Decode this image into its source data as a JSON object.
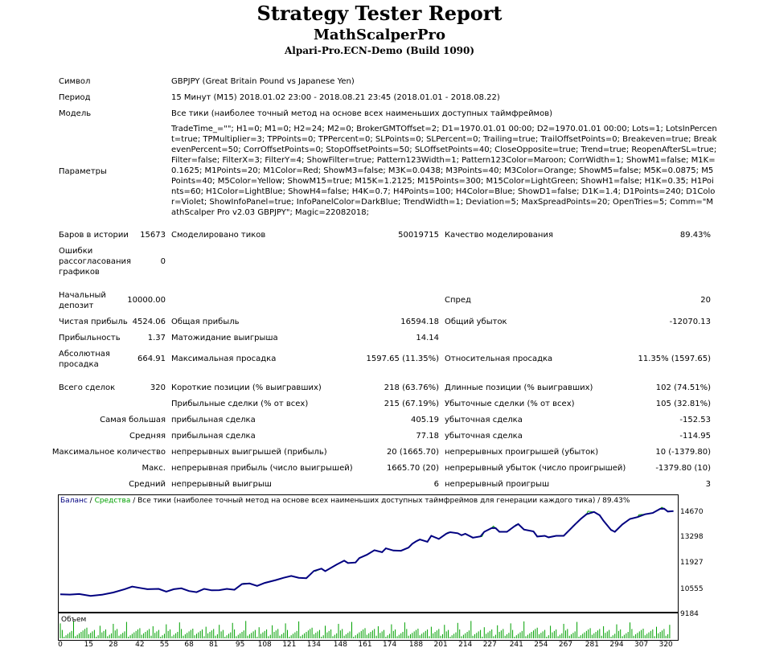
{
  "report": {
    "title": "Strategy Tester Report",
    "expert": "MathScalperPro",
    "server": "Alpari-Pro.ECN-Demo (Build 1090)"
  },
  "info": {
    "symbol_label": "Символ",
    "symbol_value": "GBPJPY (Great Britain Pound vs Japanese Yen)",
    "period_label": "Период",
    "period_value": "15 Минут (M15) 2018.01.02 23:00 - 2018.08.21 23:45 (2018.01.01 - 2018.08.22)",
    "model_label": "Модель",
    "model_value": "Все тики (наиболее точный метод на основе всех наименьших доступных таймфреймов)",
    "params_label": "Параметры",
    "params_value": "TradeTime_=\"\"; H1=0; M1=0; H2=24; M2=0; BrokerGMTOffset=2; D1=1970.01.01 00:00; D2=1970.01.01 00:00; Lots=1; LotsInPercent=true; TPMultiplier=3; TPPoints=0; TPPercent=0; SLPoints=0; SLPercent=0; Trailing=true; TrailOffsetPoints=0; Breakeven=true; BreakevenPercent=50; CorrOffsetPoints=0; StopOffsetPoints=50; SLOffsetPoints=40; CloseOpposite=true; Trend=true; ReopenAfterSL=true; Filter=false; FilterX=3; FilterY=4; ShowFilter=true; Pattern123Width=1; Pattern123Color=Maroon; CorrWidth=1; ShowM1=false; M1K=0.1625; M1Points=20; M1Color=Red; ShowM3=false; M3K=0.0438; M3Points=40; M3Color=Orange; ShowM5=false; M5K=0.0875; M5Points=40; M5Color=Yellow; ShowM15=true; M15K=1.2125; M15Points=300; M15Color=LightGreen; ShowH1=false; H1K=0.35; H1Points=60; H1Color=LightBlue; ShowH4=false; H4K=0.7; H4Points=100; H4Color=Blue; ShowD1=false; D1K=1.4; D1Points=240; D1Color=Violet; ShowInfoPanel=true; InfoPanelColor=DarkBlue; TrendWidth=1; Deviation=5; MaxSpreadPoints=20; OpenTries=5; Comm=\"MathScalper Pro v2.03 GBPJPY\"; Magic=22082018;"
  },
  "stats": {
    "bars_label": "Баров в истории",
    "bars_value": "15673",
    "ticks_label": "Смоделировано тиков",
    "ticks_value": "50019715",
    "quality_label": "Качество моделирования",
    "quality_value": "89.43%",
    "errors_label_1": "Ошибки",
    "errors_label_2": "рассогласования",
    "errors_label_3": "графиков",
    "errors_value": "0",
    "deposit_label_1": "Начальный",
    "deposit_label_2": "депозит",
    "deposit_value": "10000.00",
    "spread_label": "Спред",
    "spread_value": "20",
    "net_label": "Чистая прибыль",
    "net_value": "4524.06",
    "gross_profit_label": "Общая прибыль",
    "gross_profit_value": "16594.18",
    "gross_loss_label": "Общий убыток",
    "gross_loss_value": "-12070.13",
    "pf_label": "Прибыльность",
    "pf_value": "1.37",
    "expected_label": "Матожидание выигрыша",
    "expected_value": "14.14",
    "abs_dd_label_1": "Абсолютная",
    "abs_dd_label_2": "просадка",
    "abs_dd_value": "664.91",
    "max_dd_label": "Максимальная просадка",
    "max_dd_value": "1597.65 (11.35%)",
    "rel_dd_label": "Относительная просадка",
    "rel_dd_value": "11.35% (1597.65)",
    "total_label": "Всего сделок",
    "total_value": "320",
    "short_label": "Короткие позиции (% выигравших)",
    "short_value": "218 (63.76%)",
    "long_label": "Длинные позиции (% выигравших)",
    "long_value": "102 (74.51%)",
    "profit_trades_label": "Прибыльные сделки (% от всех)",
    "profit_trades_value": "215 (67.19%)",
    "loss_trades_label": "Убыточные сделки (% от всех)",
    "loss_trades_value": "105 (32.81%)",
    "largest_label": "Самая большая",
    "largest_profit_label": "прибыльная сделка",
    "largest_profit_value": "405.19",
    "largest_loss_label": "убыточная сделка",
    "largest_loss_value": "-152.53",
    "average_label": "Средняя",
    "average_profit_label": "прибыльная сделка",
    "average_profit_value": "77.18",
    "average_loss_label": "убыточная сделка",
    "average_loss_value": "-114.95",
    "max_count_label": "Максимальное количество",
    "cons_wins_label": "непрерывных выигрышей (прибыль)",
    "cons_wins_value": "20 (1665.70)",
    "cons_losses_label": "непрерывных проигрышей (убыток)",
    "cons_losses_value": "10 (-1379.80)",
    "max_label": "Макс.",
    "cons_profit_label": "непрерывная прибыль (число выигрышей)",
    "cons_profit_value": "1665.70 (20)",
    "cons_loss_label": "непрерывный убыток (число проигрышей)",
    "cons_loss_value": "-1379.80 (10)",
    "avg_label": "Средний",
    "avg_wins_label": "непрерывный выигрыш",
    "avg_wins_value": "6",
    "avg_losses_label": "непрерывный проигрыш",
    "avg_losses_value": "3"
  },
  "chart_data": {
    "type": "line",
    "legend": {
      "balance": "Баланс",
      "sep1": " / ",
      "equity": "Средства",
      "rest": " / Все тики (наиболее точный метод на основе всех наименьших доступных таймфреймов для генерации каждого тика) / 89.43%"
    },
    "colors": {
      "balance": "#000080",
      "equity": "#00a000",
      "volume": "#00a000"
    },
    "ylim": [
      9184,
      15300
    ],
    "yticks": [
      "14670",
      "13298",
      "11927",
      "10555",
      "9184"
    ],
    "xlim": [
      0,
      325
    ],
    "xticks": [
      "0",
      "15",
      "28",
      "42",
      "55",
      "68",
      "81",
      "95",
      "108",
      "121",
      "134",
      "148",
      "161",
      "174",
      "188",
      "201",
      "214",
      "227",
      "241",
      "254",
      "267",
      "281",
      "294",
      "307",
      "320"
    ],
    "volume_label": "Объем",
    "balance_points": [
      [
        0,
        10000
      ],
      [
        5,
        9990
      ],
      [
        10,
        10020
      ],
      [
        16,
        9920
      ],
      [
        22,
        9980
      ],
      [
        28,
        10100
      ],
      [
        34,
        10280
      ],
      [
        38,
        10420
      ],
      [
        42,
        10350
      ],
      [
        46,
        10280
      ],
      [
        52,
        10300
      ],
      [
        56,
        10150
      ],
      [
        60,
        10280
      ],
      [
        64,
        10330
      ],
      [
        68,
        10180
      ],
      [
        72,
        10120
      ],
      [
        76,
        10300
      ],
      [
        80,
        10220
      ],
      [
        84,
        10230
      ],
      [
        88,
        10300
      ],
      [
        92,
        10250
      ],
      [
        96,
        10560
      ],
      [
        100,
        10590
      ],
      [
        104,
        10460
      ],
      [
        108,
        10620
      ],
      [
        114,
        10780
      ],
      [
        118,
        10900
      ],
      [
        122,
        11000
      ],
      [
        126,
        10900
      ],
      [
        130,
        10880
      ],
      [
        134,
        11270
      ],
      [
        138,
        11400
      ],
      [
        140,
        11260
      ],
      [
        146,
        11620
      ],
      [
        150,
        11830
      ],
      [
        152,
        11700
      ],
      [
        156,
        11730
      ],
      [
        158,
        11970
      ],
      [
        162,
        12150
      ],
      [
        166,
        12400
      ],
      [
        170,
        12290
      ],
      [
        172,
        12500
      ],
      [
        176,
        12380
      ],
      [
        180,
        12370
      ],
      [
        184,
        12540
      ],
      [
        186,
        12750
      ],
      [
        188,
        12880
      ],
      [
        190,
        12980
      ],
      [
        194,
        12860
      ],
      [
        196,
        13180
      ],
      [
        200,
        13010
      ],
      [
        204,
        13300
      ],
      [
        206,
        13380
      ],
      [
        210,
        13320
      ],
      [
        212,
        13210
      ],
      [
        214,
        13290
      ],
      [
        218,
        13080
      ],
      [
        222,
        13150
      ],
      [
        224,
        13400
      ],
      [
        228,
        13610
      ],
      [
        230,
        13600
      ],
      [
        232,
        13400
      ],
      [
        236,
        13400
      ],
      [
        240,
        13700
      ],
      [
        242,
        13820
      ],
      [
        245,
        13520
      ],
      [
        250,
        13420
      ],
      [
        252,
        13140
      ],
      [
        256,
        13180
      ],
      [
        258,
        13100
      ],
      [
        262,
        13180
      ],
      [
        266,
        13180
      ],
      [
        270,
        13590
      ],
      [
        272,
        13800
      ],
      [
        275,
        14100
      ],
      [
        278,
        14350
      ],
      [
        282,
        14480
      ],
      [
        285,
        14300
      ],
      [
        287,
        14000
      ],
      [
        291,
        13500
      ],
      [
        293,
        13400
      ],
      [
        297,
        13800
      ],
      [
        301,
        14100
      ],
      [
        305,
        14200
      ],
      [
        309,
        14350
      ],
      [
        313,
        14420
      ],
      [
        317,
        14650
      ],
      [
        319,
        14660
      ],
      [
        321,
        14500
      ],
      [
        324,
        14524
      ]
    ],
    "equity_offsets": [
      [
        96,
        40
      ],
      [
        134,
        -15
      ],
      [
        160,
        90
      ],
      [
        188,
        60
      ],
      [
        204,
        70
      ],
      [
        222,
        -10
      ],
      [
        228,
        95
      ],
      [
        240,
        90
      ],
      [
        270,
        120
      ],
      [
        278,
        170
      ],
      [
        305,
        130
      ],
      [
        317,
        80
      ]
    ]
  }
}
